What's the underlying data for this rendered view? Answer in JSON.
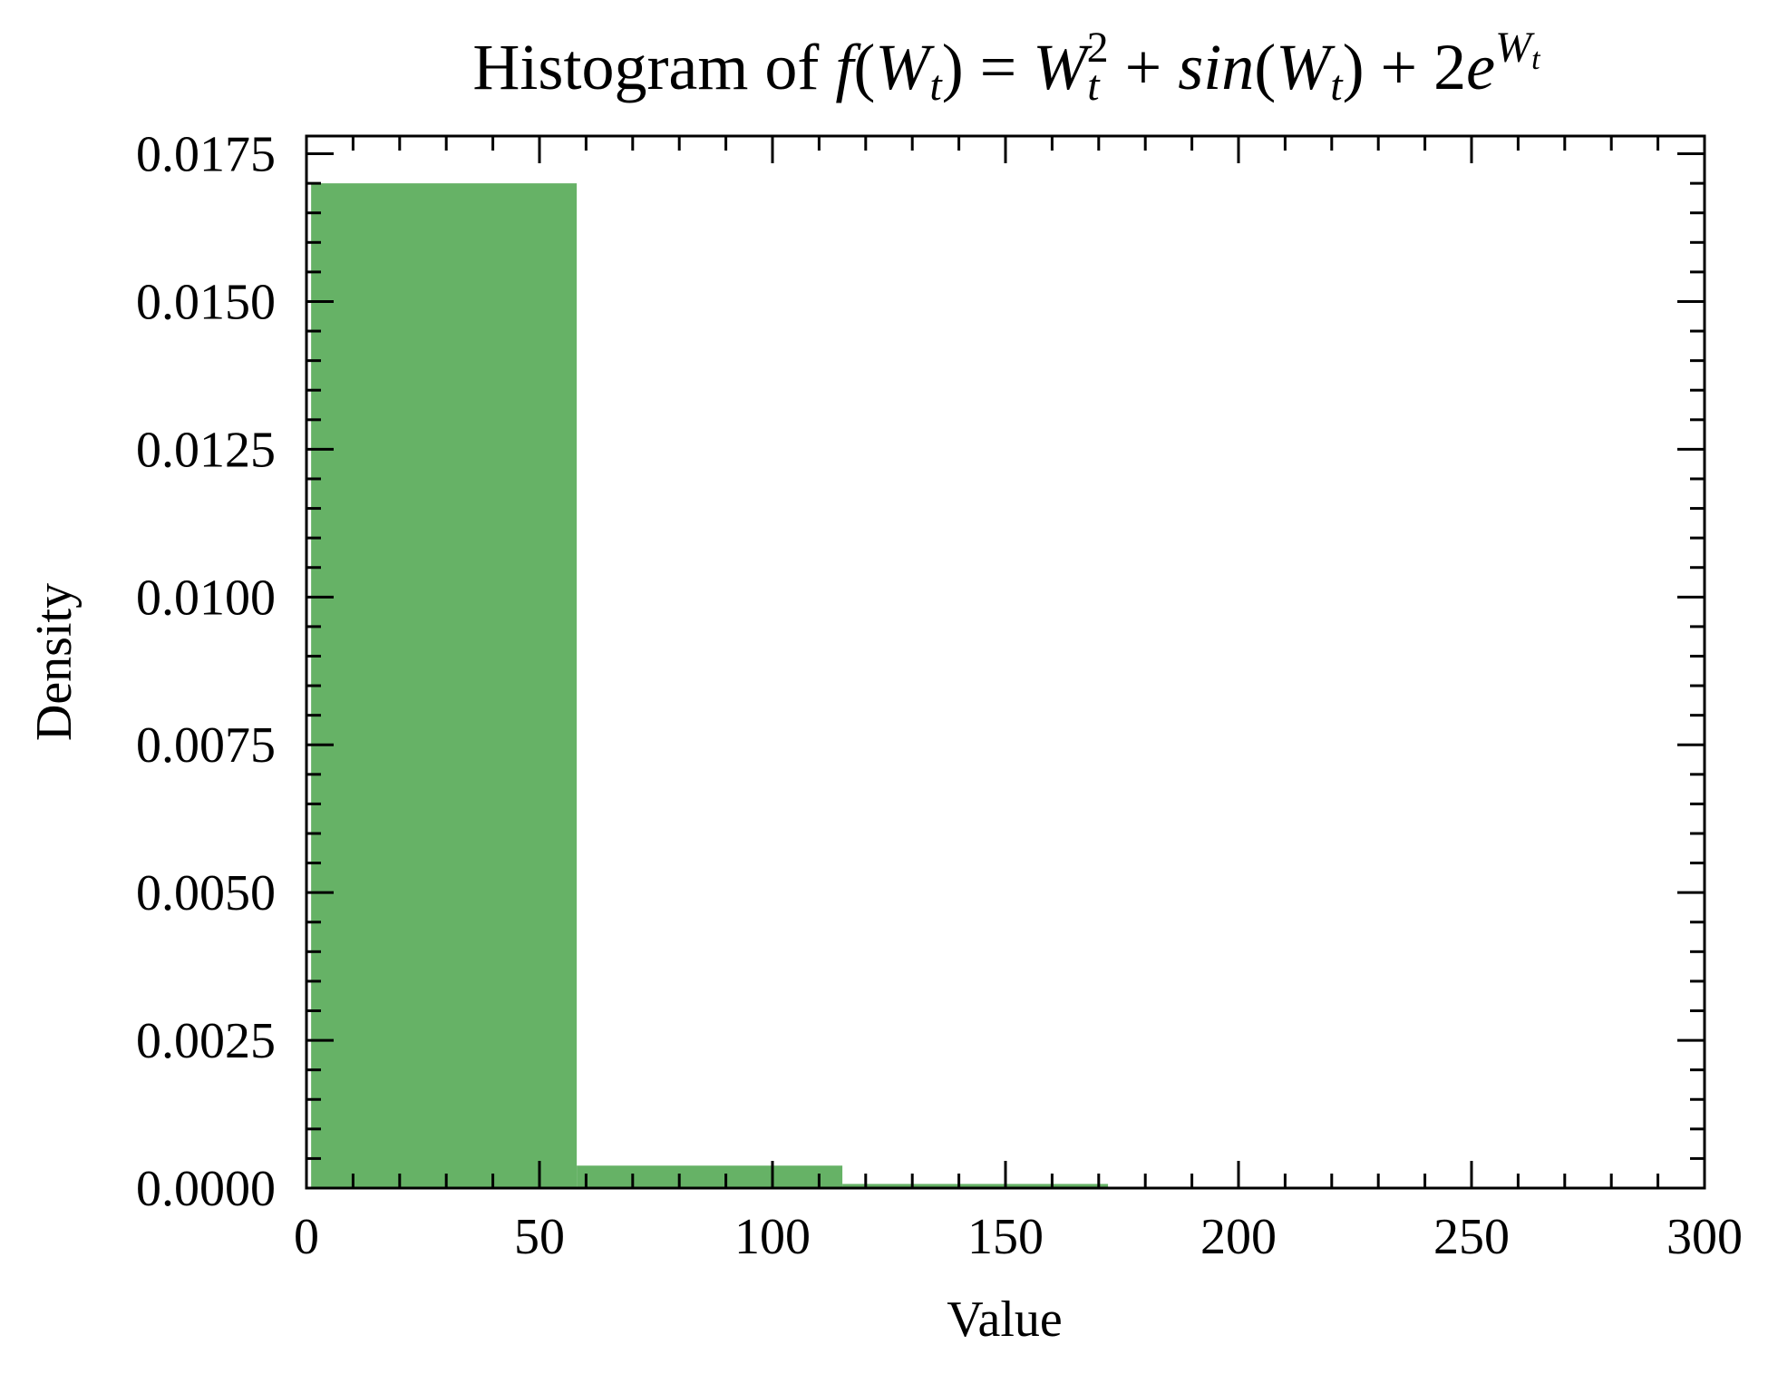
{
  "chart_data": {
    "type": "bar",
    "subtype": "histogram",
    "title": {
      "prefix": "Histogram of ",
      "f": "f",
      "open1": "(",
      "W1": "W",
      "t1": "t",
      "close1": ")",
      "eq": " = ",
      "W2": "W",
      "t2": "t",
      "sq": "2",
      "plus1": " + ",
      "sin": "sin",
      "open2": "(",
      "W3": "W",
      "t3": "t",
      "close2": ")",
      "plus2": " + 2",
      "e": "e",
      "W4": "W",
      "t4": "t"
    },
    "xlabel": "Value",
    "ylabel": "Density",
    "xlim": [
      0,
      300
    ],
    "ylim": [
      0,
      0.0178
    ],
    "xticks": [
      "0",
      "50",
      "100",
      "150",
      "200",
      "250",
      "300"
    ],
    "yticks": [
      "0.0000",
      "0.0025",
      "0.0050",
      "0.0075",
      "0.0100",
      "0.0125",
      "0.0150",
      "0.0175"
    ],
    "bins": [
      {
        "x0": 1,
        "x1": 58,
        "density": 0.017
      },
      {
        "x0": 58,
        "x1": 115,
        "density": 0.00038
      },
      {
        "x0": 115,
        "x1": 172,
        "density": 7e-05
      },
      {
        "x0": 172,
        "x1": 229,
        "density": 1e-05
      },
      {
        "x0": 229,
        "x1": 286,
        "density": 5e-06
      }
    ],
    "bar_color": "#66b266",
    "grid": false
  }
}
